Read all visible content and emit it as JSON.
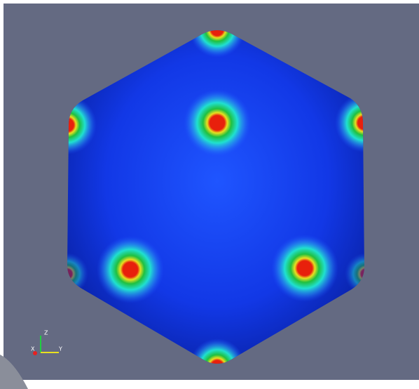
{
  "axes": {
    "labels": [
      "Z",
      "X",
      "Y"
    ]
  }
}
